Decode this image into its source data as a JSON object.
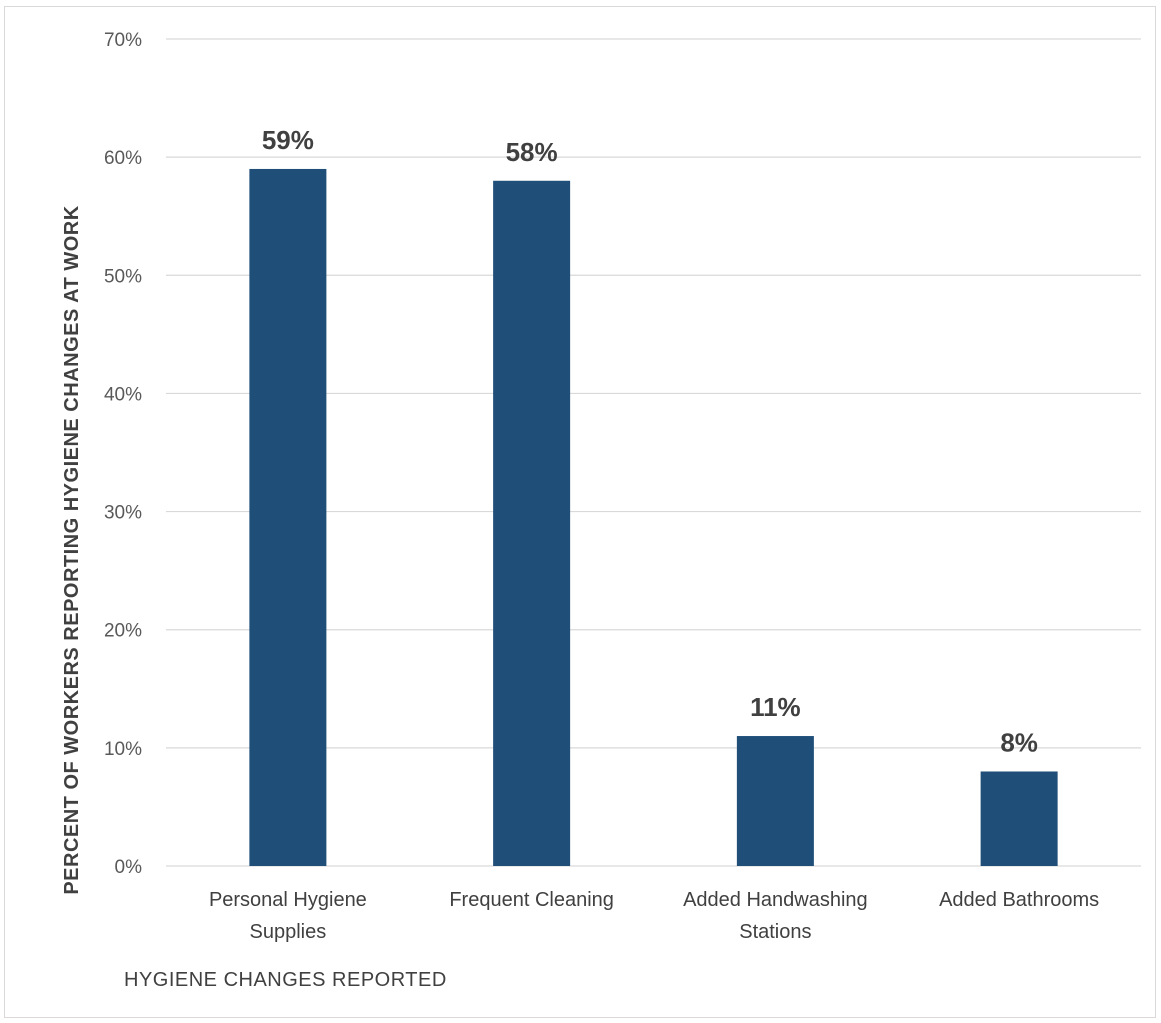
{
  "chart_data": {
    "type": "bar",
    "categories": [
      [
        "Personal Hygiene",
        "Supplies"
      ],
      [
        "Frequent Cleaning"
      ],
      [
        "Added Handwashing",
        "Stations"
      ],
      [
        "Added Bathrooms"
      ]
    ],
    "values": [
      59,
      58,
      11,
      8
    ],
    "data_labels": [
      "59%",
      "58%",
      "11%",
      "8%"
    ],
    "title": "",
    "xlabel": "HYGIENE CHANGES REPORTED",
    "ylabel": "PERCENT OF WORKERS REPORTING HYGIENE CHANGES AT WORK",
    "ylim": [
      0,
      70
    ],
    "yticks": [
      0,
      10,
      20,
      30,
      40,
      50,
      60,
      70
    ],
    "ytick_labels": [
      "0%",
      "10%",
      "20%",
      "30%",
      "40%",
      "50%",
      "60%",
      "70%"
    ],
    "grid": true,
    "legend": "none",
    "bar_color": "#1f4e79"
  }
}
